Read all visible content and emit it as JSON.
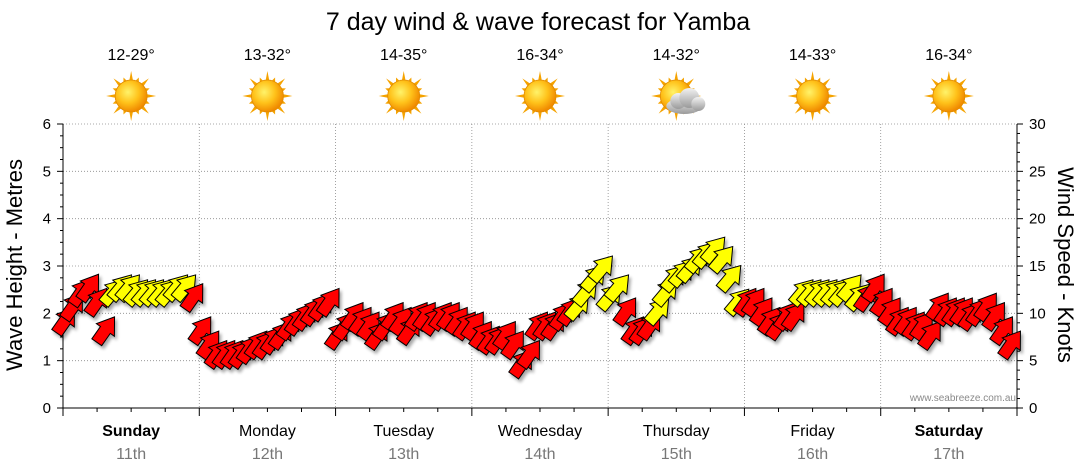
{
  "chart_data": {
    "type": "scatter",
    "title": "7 day wind & wave forecast for Yamba",
    "y_left": {
      "label": "Wave Height - Metres",
      "range": [
        0,
        6
      ],
      "ticks": [
        "0",
        "1",
        "2",
        "3",
        "4",
        "5",
        "6"
      ]
    },
    "y_right": {
      "label": "Wind Speed - Knots",
      "range": [
        0,
        30
      ],
      "ticks": [
        "0",
        "5",
        "10",
        "15",
        "20",
        "25",
        "30"
      ]
    },
    "grid": true,
    "days": [
      {
        "name": "Sunday",
        "date": "11th",
        "bold": true,
        "temp": "12-29°",
        "weather": "sunny-icon"
      },
      {
        "name": "Monday",
        "date": "12th",
        "bold": false,
        "temp": "13-32°",
        "weather": "sunny-icon"
      },
      {
        "name": "Tuesday",
        "date": "13th",
        "bold": false,
        "temp": "14-35°",
        "weather": "sunny-icon"
      },
      {
        "name": "Wednesday",
        "date": "14th",
        "bold": false,
        "temp": "16-34°",
        "weather": "sunny-icon"
      },
      {
        "name": "Thursday",
        "date": "15th",
        "bold": false,
        "temp": "14-32°",
        "weather": "partly-cloudy-icon"
      },
      {
        "name": "Friday",
        "date": "16th",
        "bold": false,
        "temp": "14-33°",
        "weather": "sunny-icon"
      },
      {
        "name": "Saturday",
        "date": "17th",
        "bold": true,
        "temp": "16-34°",
        "weather": "sunny-icon"
      }
    ],
    "legend": "none",
    "colors": {
      "strong_wind": "#ff0000",
      "light_wind": "#ffff00",
      "outline": "#000000"
    },
    "wind_arrows_knots_by_day": [
      [
        9.5,
        11,
        12.5,
        13,
        11.5,
        8.5,
        12.5,
        13,
        13,
        12.5,
        12.5,
        12.5,
        12.5,
        12.5,
        13,
        13,
        12
      ],
      [
        8.5,
        7,
        6,
        6,
        6,
        6,
        6.5,
        7,
        7,
        7.5,
        8,
        9,
        9.5,
        10,
        10.5,
        11,
        11.5
      ],
      [
        8,
        9,
        10,
        9.5,
        9,
        8,
        9,
        10,
        9.5,
        8.5,
        10,
        10,
        9.5,
        10,
        10,
        9.5,
        9
      ],
      [
        9,
        8,
        7.5,
        7.5,
        8,
        7,
        5,
        6,
        9,
        9,
        9,
        10,
        10.5,
        11,
        12.5,
        14,
        15
      ],
      [
        12,
        13,
        10.5,
        8.5,
        8.5,
        9,
        10.5,
        12.5,
        14,
        14.5,
        15,
        16,
        16.5,
        17,
        16,
        14,
        11.5
      ],
      [
        11.5,
        11.5,
        10.5,
        9.5,
        9,
        10,
        10,
        12.5,
        12.5,
        12.5,
        12.5,
        12.5,
        12.5,
        13,
        12,
        12,
        13
      ],
      [
        11.5,
        10.5,
        9.5,
        9.5,
        9,
        9,
        8,
        11,
        10.5,
        10.5,
        10.5,
        10,
        10.5,
        11,
        10,
        8.5,
        7
      ]
    ],
    "wind_arrows_light_by_day": [
      [
        false,
        false,
        false,
        false,
        false,
        false,
        true,
        true,
        true,
        true,
        true,
        true,
        true,
        true,
        true,
        true,
        false
      ],
      [
        false,
        false,
        false,
        false,
        false,
        false,
        false,
        false,
        false,
        false,
        false,
        false,
        false,
        false,
        false,
        false,
        false
      ],
      [
        false,
        false,
        false,
        false,
        false,
        false,
        false,
        false,
        false,
        false,
        false,
        false,
        false,
        false,
        false,
        false,
        false
      ],
      [
        false,
        false,
        false,
        false,
        false,
        false,
        false,
        false,
        false,
        false,
        false,
        false,
        false,
        true,
        true,
        true,
        true
      ],
      [
        true,
        true,
        false,
        false,
        false,
        false,
        true,
        true,
        true,
        true,
        true,
        true,
        true,
        true,
        true,
        true,
        true
      ],
      [
        false,
        false,
        false,
        false,
        false,
        false,
        false,
        true,
        true,
        true,
        true,
        true,
        true,
        true,
        true,
        false,
        false
      ],
      [
        false,
        false,
        false,
        false,
        false,
        false,
        false,
        false,
        false,
        false,
        false,
        false,
        false,
        false,
        false,
        false,
        false
      ]
    ]
  },
  "credit": "www.seabreeze.com.au"
}
